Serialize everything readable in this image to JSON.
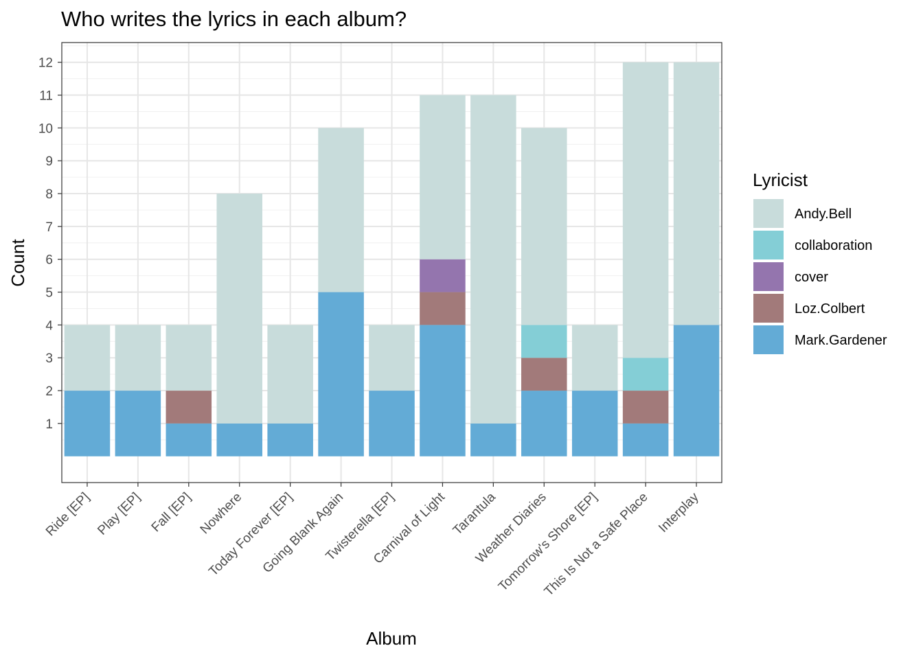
{
  "chart_data": {
    "type": "bar",
    "stacked": true,
    "title": "Who writes the lyrics in each album?",
    "xlabel": "Album",
    "ylabel": "Count",
    "ylim": [
      -0.8,
      12.6
    ],
    "yticks": [
      1,
      2,
      3,
      4,
      5,
      6,
      7,
      8,
      9,
      10,
      11,
      12
    ],
    "grid": true,
    "legend": {
      "title": "Lyricist",
      "position": "right"
    },
    "categories": [
      "Ride [EP]",
      "Play [EP]",
      "Fall [EP]",
      "Nowhere",
      "Today Forever [EP]",
      "Going Blank Again",
      "Twisterella [EP]",
      "Carnival of Light",
      "Tarantula",
      "Weather Diaries",
      "Tomorrow's Shore [EP]",
      "This Is Not a Safe Place",
      "Interplay"
    ],
    "series": [
      {
        "name": "Andy.Bell",
        "color": "#c8dcdb",
        "values": [
          2,
          2,
          2,
          7,
          3,
          5,
          2,
          5,
          10,
          6,
          2,
          9,
          8
        ]
      },
      {
        "name": "collaboration",
        "color": "#84ced6",
        "values": [
          0,
          0,
          0,
          0,
          0,
          0,
          0,
          0,
          0,
          1,
          0,
          1,
          0
        ]
      },
      {
        "name": "cover",
        "color": "#9475ae",
        "values": [
          0,
          0,
          0,
          0,
          0,
          0,
          0,
          1,
          0,
          0,
          0,
          0,
          0
        ]
      },
      {
        "name": "Loz.Colbert",
        "color": "#a27a7a",
        "values": [
          0,
          0,
          1,
          0,
          0,
          0,
          0,
          1,
          0,
          1,
          0,
          1,
          0
        ]
      },
      {
        "name": "Mark.Gardener",
        "color": "#63abd6",
        "values": [
          2,
          2,
          1,
          1,
          1,
          5,
          2,
          4,
          1,
          2,
          2,
          1,
          4
        ]
      }
    ]
  }
}
